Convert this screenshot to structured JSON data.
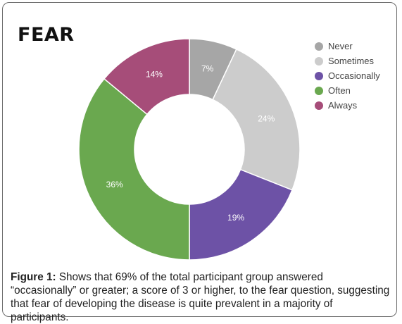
{
  "chart_data": {
    "type": "pie",
    "title": "FEAR",
    "categories": [
      "Never",
      "Sometimes",
      "Occasionally",
      "Often",
      "Always"
    ],
    "values": [
      7,
      24,
      19,
      36,
      14
    ],
    "labels": [
      "7%",
      "24%",
      "19%",
      "36%",
      "14%"
    ],
    "colors": [
      "#a6a6a6",
      "#cccccc",
      "#6d52a6",
      "#6aa84f",
      "#a64d79"
    ],
    "legend": "top-right",
    "donut": true
  },
  "caption": {
    "label": "Figure 1:",
    "text": " Shows that 69% of the total participant group answered “occasionally” or greater; a score of 3 or higher, to the fear question, suggesting that fear of developing the disease is quite prevalent in a majority of participants."
  }
}
